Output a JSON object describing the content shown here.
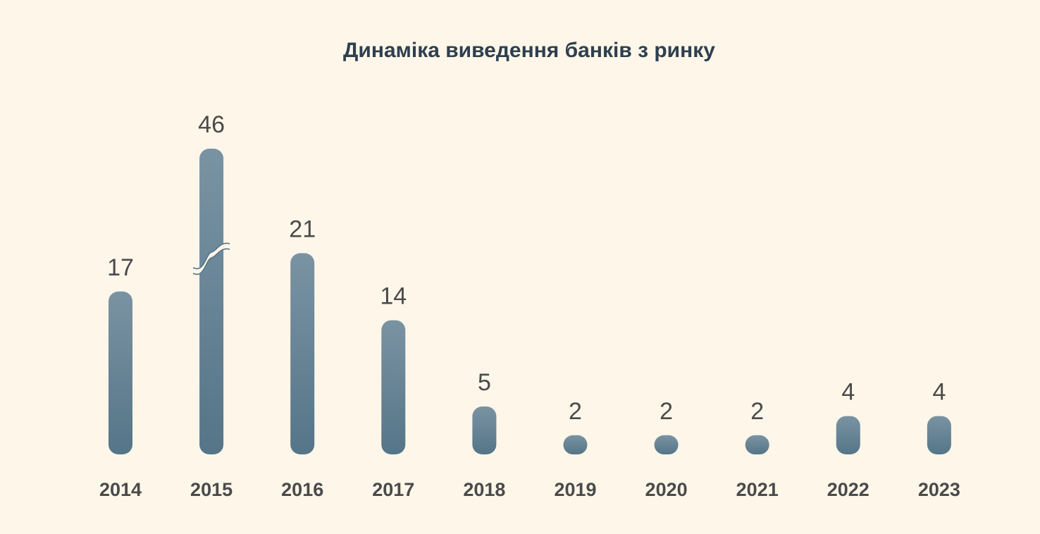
{
  "chart_data": {
    "type": "bar",
    "title": "Динаміка виведення банків з ринку",
    "categories": [
      "2014",
      "2015",
      "2016",
      "2017",
      "2018",
      "2019",
      "2020",
      "2021",
      "2022",
      "2023"
    ],
    "values": [
      17,
      46,
      21,
      14,
      5,
      2,
      2,
      2,
      4,
      4
    ],
    "value_labels": [
      "17",
      "46",
      "21",
      "14",
      "5",
      "2",
      "2",
      "2",
      "4",
      "4"
    ],
    "broken_axis_bar": "2015",
    "xlabel": "",
    "ylabel": "",
    "grid": false,
    "legend": "none",
    "colors": {
      "bar_top": "#7a93a3",
      "bar_bottom": "#557588",
      "background": "#fdf6e9",
      "text": "#4a4a4a",
      "title": "#2e3f4f"
    }
  }
}
